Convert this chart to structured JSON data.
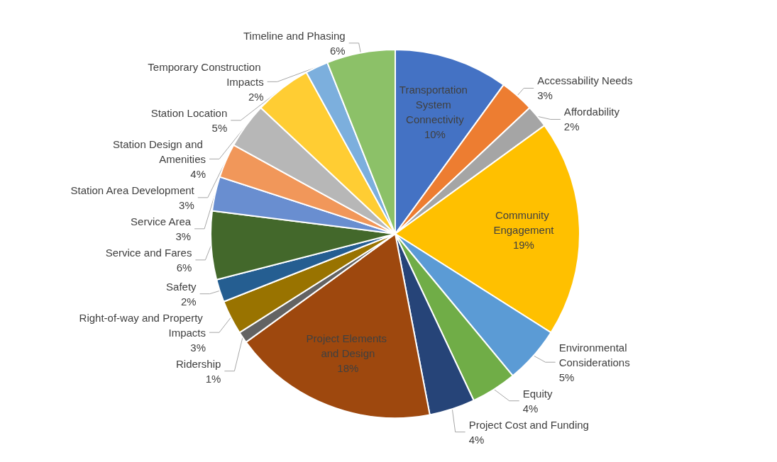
{
  "chart_data": {
    "type": "pie",
    "categories": [
      "Transportation System Connectivity",
      "Accessability Needs",
      "Affordability",
      "Community Engagement",
      "Environmental Considerations",
      "Equity",
      "Project Cost and Funding",
      "Project Elements and Design",
      "Ridership",
      "Right-of-way and Property Impacts",
      "Safety",
      "Service and Fares",
      "Service Area",
      "Station Area Development",
      "Station Design and Amenities",
      "Station Location",
      "Temporary Construction Impacts",
      "Timeline and Phasing"
    ],
    "values": [
      10,
      3,
      2,
      19,
      5,
      4,
      4,
      18,
      1,
      3,
      2,
      6,
      3,
      3,
      4,
      5,
      2,
      6
    ],
    "colors": [
      "#4472c4",
      "#ed7d31",
      "#a5a5a5",
      "#ffc000",
      "#5b9bd5",
      "#70ad47",
      "#264478",
      "#9e480e",
      "#636363",
      "#997300",
      "#255e91",
      "#43682b",
      "#698ed0",
      "#f1975a",
      "#b7b7b7",
      "#ffcd33",
      "#7cafdd",
      "#8cc168"
    ],
    "value_labels": [
      "10%",
      "3%",
      "2%",
      "19%",
      "5%",
      "4%",
      "4%",
      "18%",
      "1%",
      "3%",
      "2%",
      "6%",
      "3%",
      "3%",
      "4%",
      "5%",
      "2%",
      "6%"
    ],
    "legend": false
  }
}
